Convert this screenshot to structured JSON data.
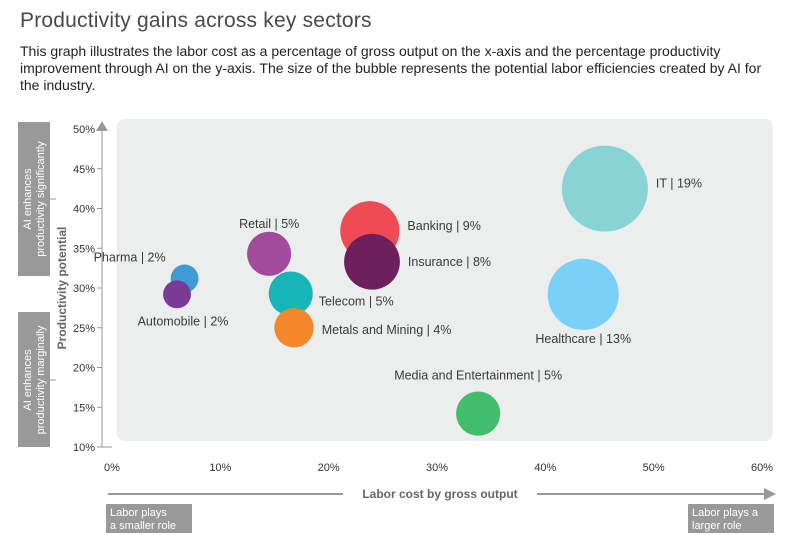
{
  "title": "Productivity gains across key sectors",
  "subtitle": "This graph illustrates the labor cost as a percentage of gross output on the x-axis and the percentage productivity improvement through AI on the y-axis. The size of the bubble represents the potential labor efficiencies created by AI for the industry.",
  "colors": {
    "plot_bg": "#eceded",
    "axis": "#999999",
    "side_box": "#999999"
  },
  "chart_data": {
    "type": "scatter",
    "subtype": "bubble",
    "title": "Productivity gains across key sectors",
    "xlabel": "Labor cost by gross output",
    "ylabel": "Productivity potential",
    "xlim": [
      0,
      60
    ],
    "ylim": [
      10,
      50
    ],
    "x_ticks": [
      "0%",
      "10%",
      "20%",
      "30%",
      "40%",
      "50%",
      "60%"
    ],
    "y_ticks": [
      "10%",
      "15%",
      "20%",
      "25%",
      "30%",
      "35%",
      "40%",
      "45%",
      "50%"
    ],
    "grid": false,
    "y_side_labels": {
      "top": [
        "AI enhances",
        "productivity significantly"
      ],
      "bottom": [
        "AI enhances",
        "productivity marginally"
      ]
    },
    "x_role_labels": {
      "left": [
        "Labor plays",
        "a smaller role"
      ],
      "right": [
        "Labor plays a",
        "larger role"
      ]
    },
    "points": [
      {
        "label": "IT | 19%",
        "x": 45.5,
        "y": 42.5,
        "size": 19,
        "color": "#88d3d3"
      },
      {
        "label": "Banking | 9%",
        "x": 23.8,
        "y": 37.2,
        "size": 9,
        "color": "#ef4b55"
      },
      {
        "label": "Insurance | 8%",
        "x": 24.0,
        "y": 33.3,
        "size": 8,
        "color": "#6e1f5e"
      },
      {
        "label": "Retail | 5%",
        "x": 14.5,
        "y": 34.3,
        "size": 5,
        "color": "#a24a9c"
      },
      {
        "label": "Telecom | 5%",
        "x": 16.5,
        "y": 29.3,
        "size": 5,
        "color": "#16b5b8"
      },
      {
        "label": "Metals and Mining | 4%",
        "x": 16.8,
        "y": 25.0,
        "size": 4,
        "color": "#f4892b"
      },
      {
        "label": "Pharma | 2%",
        "x": 6.7,
        "y": 31.2,
        "size": 2,
        "color": "#3f9bd5"
      },
      {
        "label": "Automobile | 2%",
        "x": 6.0,
        "y": 29.2,
        "size": 2,
        "color": "#7a3b97"
      },
      {
        "label": "Healthcare | 13%",
        "x": 43.5,
        "y": 29.2,
        "size": 13,
        "color": "#7ad0f7"
      },
      {
        "label": "Media and Entertainment | 5%",
        "x": 33.8,
        "y": 14.2,
        "size": 5,
        "color": "#41bd6c"
      }
    ]
  }
}
